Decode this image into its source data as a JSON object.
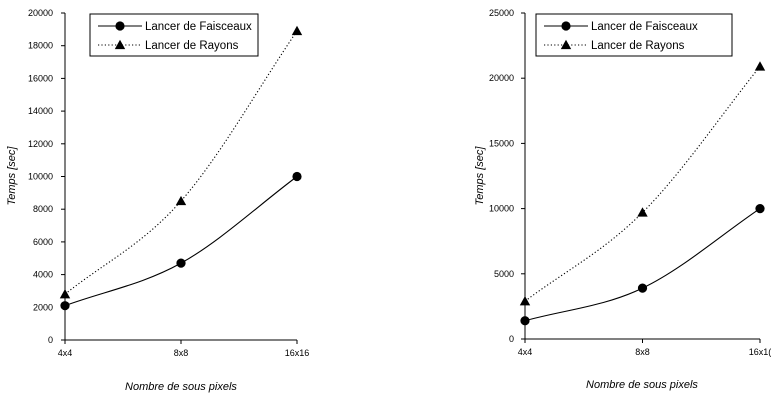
{
  "chart_data": [
    {
      "type": "line",
      "title": "",
      "xlabel": "Nombre de sous pixels",
      "ylabel": "Temps [sec]",
      "categories": [
        "4x4",
        "8x8",
        "16x16"
      ],
      "ylim": [
        0,
        20000
      ],
      "yticks": [
        "0",
        "2000",
        "4000",
        "6000",
        "8000",
        "10000",
        "12000",
        "14000",
        "16000",
        "18000",
        "20000"
      ],
      "legend": "top-left",
      "grid": false,
      "series": [
        {
          "name": "Lancer de Faisceaux",
          "values": [
            2100,
            4700,
            10000
          ],
          "marker": "circle",
          "line": "solid"
        },
        {
          "name": "Lancer de Rayons",
          "values": [
            2800,
            8500,
            18900
          ],
          "marker": "triangle",
          "line": "dotted"
        }
      ]
    },
    {
      "type": "line",
      "title": "",
      "xlabel": "Nombre de sous pixels",
      "ylabel": "Temps [sec]",
      "categories": [
        "4x4",
        "8x8",
        "16x1("
      ],
      "ylim": [
        0,
        25000
      ],
      "yticks": [
        "0",
        "5000",
        "10000",
        "15000",
        "20000",
        "25000"
      ],
      "legend": "top-left",
      "grid": false,
      "series": [
        {
          "name": "Lancer de Faisceaux",
          "values": [
            1400,
            3900,
            10000
          ],
          "marker": "circle",
          "line": "solid"
        },
        {
          "name": "Lancer de Rayons",
          "values": [
            2900,
            9700,
            20900
          ],
          "marker": "triangle",
          "line": "dotted"
        }
      ]
    }
  ]
}
